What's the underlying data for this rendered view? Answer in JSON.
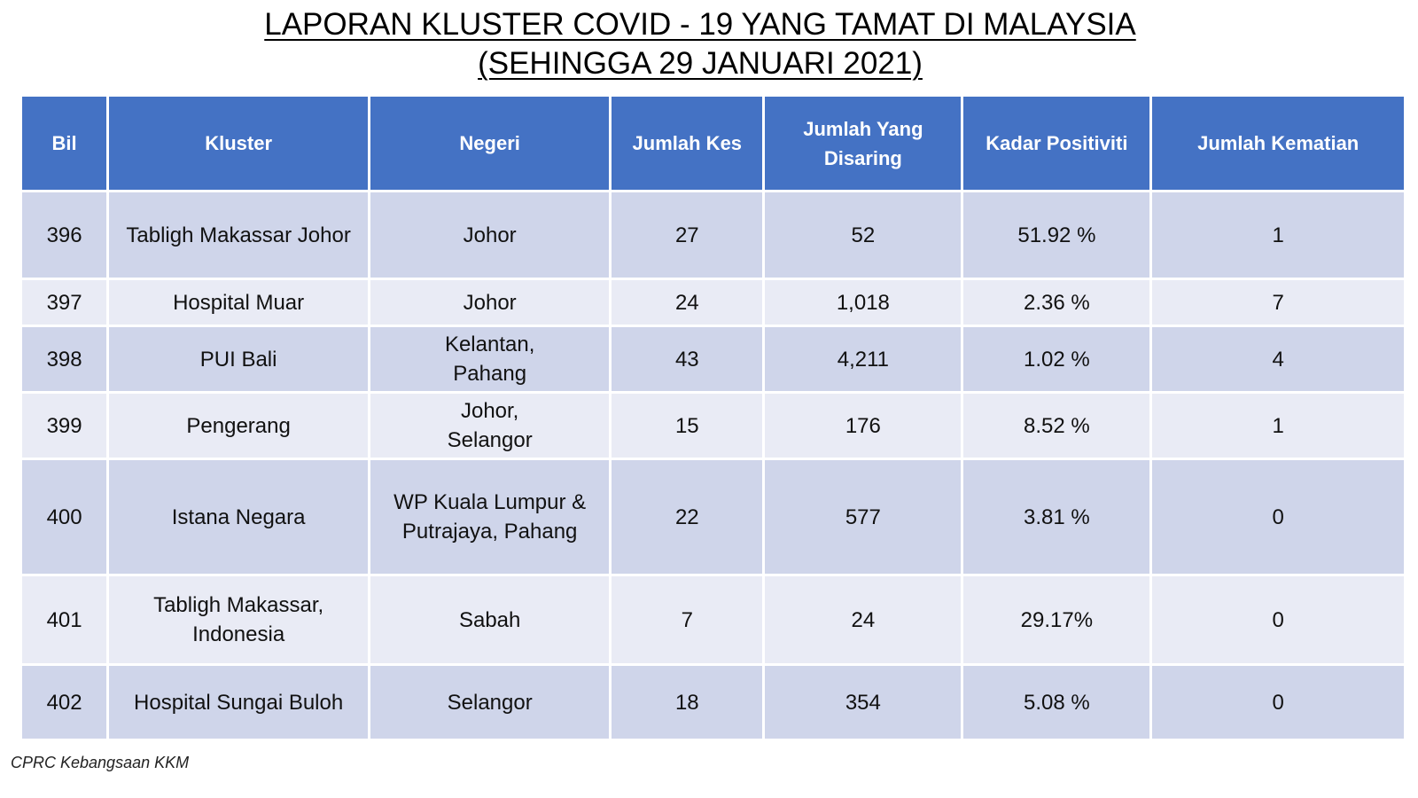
{
  "title": {
    "line1": "LAPORAN KLUSTER COVID - 19 YANG TAMAT DI MALAYSIA",
    "line2": "(SEHINGGA 29 JANUARI 2021)"
  },
  "table": {
    "headers": {
      "bil": "Bil",
      "kluster": "Kluster",
      "negeri": "Negeri",
      "jumlah_kes": "Jumlah Kes",
      "jumlah_disaring_1": "Jumlah Yang",
      "jumlah_disaring_2": "Disaring",
      "kadar_positiviti": "Kadar Positiviti",
      "jumlah_kematian": "Jumlah Kematian"
    },
    "rows": [
      {
        "bil": "396",
        "kluster_1": "Tabligh Makassar Johor",
        "kluster_2": "",
        "negeri_1": "Johor",
        "negeri_2": "",
        "kes": "27",
        "disaring": "52",
        "positiviti": "51.92 %",
        "kematian": "1"
      },
      {
        "bil": "397",
        "kluster_1": "Hospital Muar",
        "kluster_2": "",
        "negeri_1": "Johor",
        "negeri_2": "",
        "kes": "24",
        "disaring": "1,018",
        "positiviti": "2.36 %",
        "kematian": "7"
      },
      {
        "bil": "398",
        "kluster_1": "PUI Bali",
        "kluster_2": "",
        "negeri_1": "Kelantan,",
        "negeri_2": "Pahang",
        "kes": "43",
        "disaring": "4,211",
        "positiviti": "1.02 %",
        "kematian": "4"
      },
      {
        "bil": "399",
        "kluster_1": "Pengerang",
        "kluster_2": "",
        "negeri_1": "Johor,",
        "negeri_2": "Selangor",
        "kes": "15",
        "disaring": "176",
        "positiviti": "8.52 %",
        "kematian": "1"
      },
      {
        "bil": "400",
        "kluster_1": "Istana Negara",
        "kluster_2": "",
        "negeri_1": "WP Kuala Lumpur &",
        "negeri_2": "Putrajaya, Pahang",
        "kes": "22",
        "disaring": "577",
        "positiviti": "3.81 %",
        "kematian": "0"
      },
      {
        "bil": "401",
        "kluster_1": "Tabligh Makassar,",
        "kluster_2": "Indonesia",
        "negeri_1": "Sabah",
        "negeri_2": "",
        "kes": "7",
        "disaring": "24",
        "positiviti": "29.17%",
        "kematian": "0"
      },
      {
        "bil": "402",
        "kluster_1": "Hospital Sungai Buloh",
        "kluster_2": "",
        "negeri_1": "Selangor",
        "negeri_2": "",
        "kes": "18",
        "disaring": "354",
        "positiviti": "5.08 %",
        "kematian": "0"
      }
    ]
  },
  "footer": {
    "source": "CPRC Kebangsaan KKM"
  },
  "colors": {
    "header_bg": "#4472c4",
    "row_dark": "#cfd5ea",
    "row_light": "#e9ebf5"
  }
}
